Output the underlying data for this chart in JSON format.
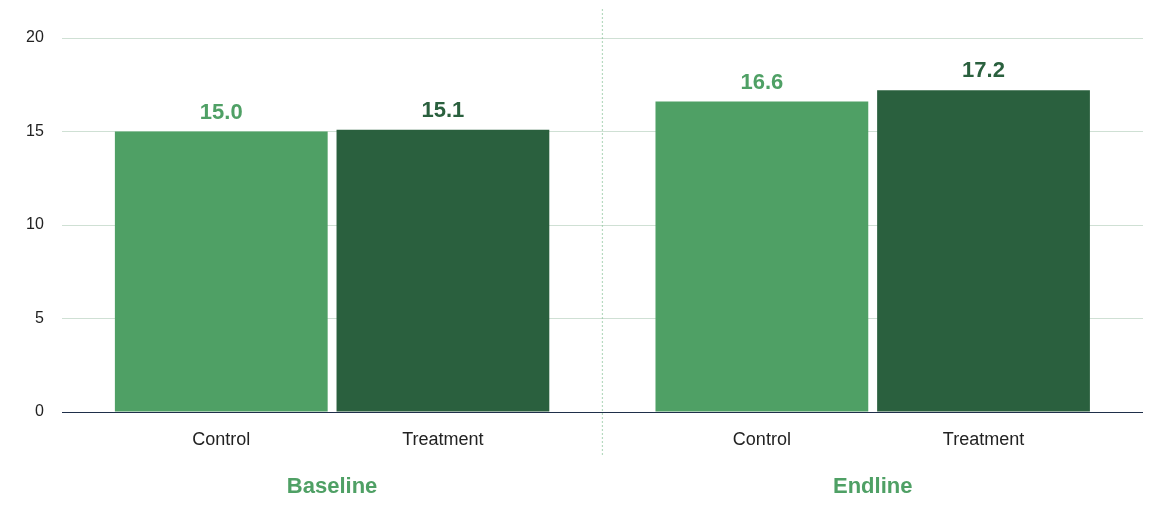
{
  "chart_data": {
    "type": "bar",
    "categories": [
      "Baseline",
      "Endline"
    ],
    "series": [
      {
        "name": "Control",
        "color": "#4fa065",
        "values": [
          15.0,
          16.6
        ],
        "value_labels": [
          "15.0",
          "16.6"
        ]
      },
      {
        "name": "Treatment",
        "color": "#2a603e",
        "values": [
          15.1,
          17.2
        ],
        "value_labels": [
          "15.1",
          "17.2"
        ]
      }
    ],
    "ylim": [
      0,
      20
    ],
    "yticks": [
      0,
      5,
      10,
      15,
      20
    ],
    "grid": "y",
    "legend": false
  }
}
